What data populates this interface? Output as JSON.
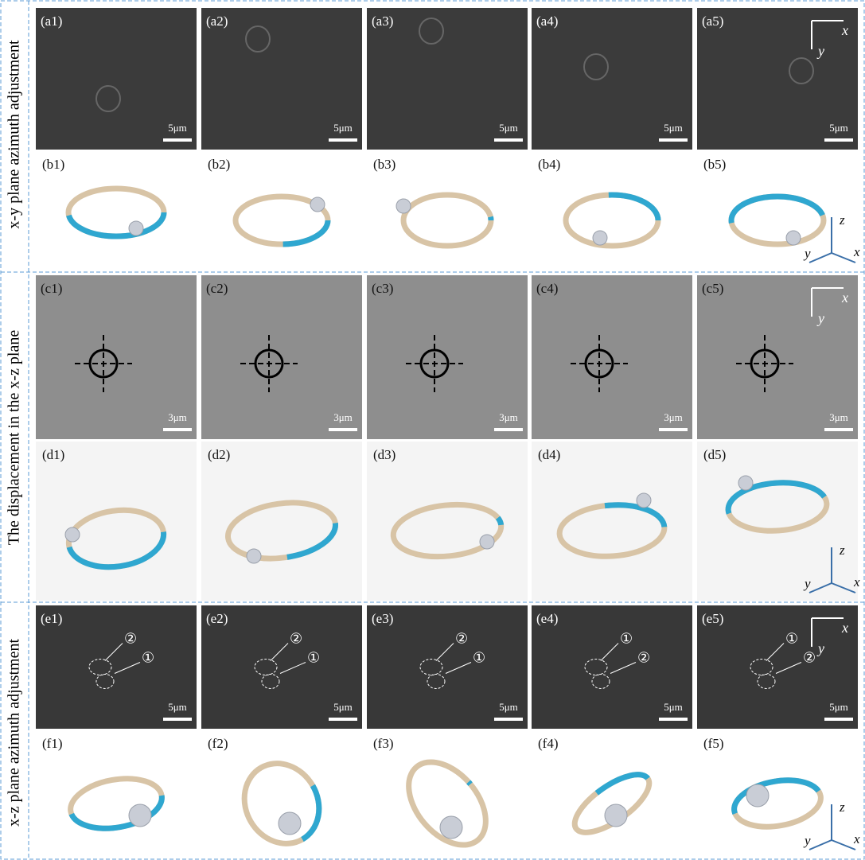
{
  "sections": [
    {
      "title": "x-y plane azimuth adjustment",
      "image_row": {
        "labels": [
          "(a1)",
          "(a2)",
          "(a3)",
          "(a4)",
          "(a5)"
        ],
        "scale_bars": [
          "5μm",
          "5μm",
          "5μm",
          "5μm",
          "5μm"
        ],
        "axes": [
          "x",
          "y"
        ]
      },
      "model_row": {
        "labels": [
          "(b1)",
          "(b2)",
          "(b3)",
          "(b4)",
          "(b5)"
        ],
        "axes": [
          "z",
          "y",
          "x"
        ]
      }
    },
    {
      "title": "The displacement in the x-z plane",
      "image_row": {
        "labels": [
          "(c1)",
          "(c2)",
          "(c3)",
          "(c4)",
          "(c5)"
        ],
        "scale_bars": [
          "3μm",
          "3μm",
          "3μm",
          "3μm",
          "3μm"
        ],
        "axes": [
          "x",
          "y"
        ]
      },
      "model_row": {
        "labels": [
          "(d1)",
          "(d2)",
          "(d3)",
          "(d4)",
          "(d5)"
        ],
        "axes": [
          "z",
          "y",
          "x"
        ]
      }
    },
    {
      "title": "x-z plane azimuth adjustment",
      "image_row": {
        "labels": [
          "(e1)",
          "(e2)",
          "(e3)",
          "(e4)",
          "(e5)"
        ],
        "scale_bars": [
          "5μm",
          "5μm",
          "5μm",
          "5μm",
          "5μm"
        ],
        "axes": [
          "x",
          "y"
        ],
        "markers": [
          [
            "②",
            "①"
          ],
          [
            "②",
            "①"
          ],
          [
            "②",
            "①"
          ],
          [
            "①",
            "②"
          ],
          [
            "①",
            "②"
          ]
        ]
      },
      "model_row": {
        "labels": [
          "(f1)",
          "(f2)",
          "(f3)",
          "(f4)",
          "(f5)"
        ],
        "axes": [
          "z",
          "y",
          "x"
        ]
      }
    }
  ]
}
